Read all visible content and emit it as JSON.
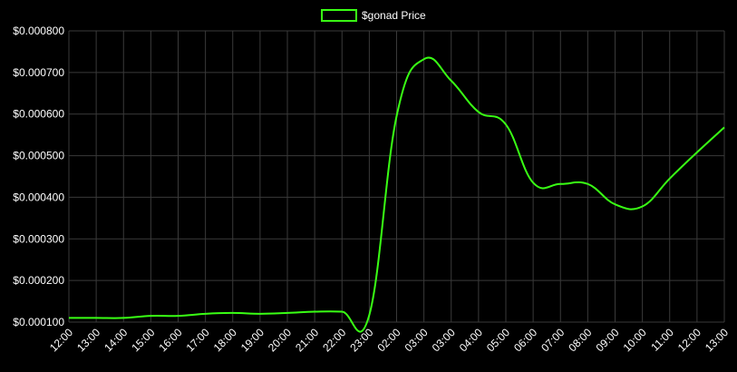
{
  "colors": {
    "background": "#000000",
    "grid": "#3a3a3a",
    "line": "#39ff14",
    "text": "#ffffff"
  },
  "chart_data": {
    "type": "line",
    "title": "",
    "xlabel": "",
    "ylabel": "",
    "grid": true,
    "legend_placement": "top-center",
    "ylim": [
      0.0001,
      0.0008
    ],
    "y_ticks": [
      0.0001,
      0.0002,
      0.0003,
      0.0004,
      0.0005,
      0.0006,
      0.0007,
      0.0008
    ],
    "y_tick_labels": [
      "$0.000100",
      "$0.000200",
      "$0.000300",
      "$0.000400",
      "$0.000500",
      "$0.000600",
      "$0.000700",
      "$0.000800"
    ],
    "categories": [
      "12:00",
      "13:00",
      "14:00",
      "15:00",
      "16:00",
      "17:00",
      "18:00",
      "19:00",
      "20:00",
      "21:00",
      "22:00",
      "23:00",
      "02:00",
      "03:00",
      "03:00",
      "04:00",
      "05:00",
      "06:00",
      "07:00",
      "08:00",
      "09:00",
      "10:00",
      "11:00",
      "12:00",
      "13:00"
    ],
    "series": [
      {
        "name": "$gonad Price",
        "color": "#39ff14",
        "values": [
          0.00011,
          0.00011,
          0.00011,
          0.000115,
          0.000115,
          0.00012,
          0.000122,
          0.00012,
          0.000122,
          0.000125,
          0.000125,
          0.000117,
          0.000595,
          0.000732,
          0.00068,
          0.000605,
          0.000575,
          0.000435,
          0.000432,
          0.000432,
          0.000383,
          0.000378,
          0.000445,
          0.000508,
          0.000568
        ]
      }
    ]
  }
}
